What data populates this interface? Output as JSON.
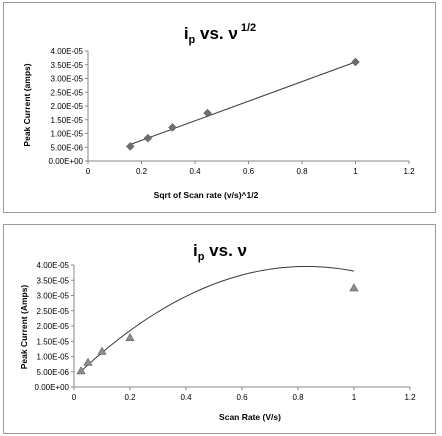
{
  "chart_data": [
    {
      "type": "scatter",
      "title_main": "i",
      "title_sub": "p",
      "title_rest": " vs. ν",
      "title_sup": " 1/2",
      "xlabel": "Sqrt of Scan rate (v/s)^1/2",
      "ylabel": "Peak Current (amps)",
      "xlim": [
        0,
        1.2
      ],
      "ylim": [
        0,
        4e-05
      ],
      "x_ticks": [
        0,
        0.2,
        0.4,
        0.6,
        0.8,
        1,
        1.2
      ],
      "x_tick_labels": [
        "0",
        "0.2",
        "0.4",
        "0.6",
        "0.8",
        "1",
        "1.2"
      ],
      "y_ticks": [
        0,
        5e-06,
        1e-05,
        1.5e-05,
        2e-05,
        2.5e-05,
        3e-05,
        3.5e-05,
        4e-05
      ],
      "y_tick_labels": [
        "0.00E+00",
        "5.00E-06",
        "1.00E-05",
        "1.50E-05",
        "2.00E-05",
        "2.50E-05",
        "3.00E-05",
        "3.50E-05",
        "4.00E-05"
      ],
      "marker": "diamond",
      "points": [
        {
          "x": 0.158,
          "y": 5.3e-06
        },
        {
          "x": 0.224,
          "y": 8.3e-06
        },
        {
          "x": 0.316,
          "y": 1.22e-05
        },
        {
          "x": 0.447,
          "y": 1.74e-05
        },
        {
          "x": 1.0,
          "y": 3.6e-05
        }
      ],
      "trendline": {
        "kind": "linear",
        "x_range": [
          0.158,
          1.0
        ],
        "y_start": 6e-06,
        "y_end": 3.6e-05
      },
      "grid": false,
      "legend": "none"
    },
    {
      "type": "scatter",
      "title_main": "i",
      "title_sub": "p",
      "title_rest": " vs. ν",
      "title_sup": "",
      "xlabel": "Scan Rate (V/s)",
      "ylabel": "Peak Current (Amps)",
      "xlim": [
        0,
        1.2
      ],
      "ylim": [
        0,
        4e-05
      ],
      "x_ticks": [
        0,
        0.2,
        0.4,
        0.6,
        0.8,
        1,
        1.2
      ],
      "x_tick_labels": [
        "0",
        "0.2",
        "0.4",
        "0.6",
        "0.8",
        "1",
        "1.2"
      ],
      "y_ticks": [
        0,
        5e-06,
        1e-05,
        1.5e-05,
        2e-05,
        2.5e-05,
        3e-05,
        3.5e-05,
        4e-05
      ],
      "y_tick_labels": [
        "0.00E+00",
        "5.00E-06",
        "1.00E-05",
        "1.50E-05",
        "2.00E-05",
        "2.50E-05",
        "3.00E-05",
        "3.50E-05",
        "4.00E-05"
      ],
      "marker": "triangle",
      "points": [
        {
          "x": 0.025,
          "y": 5.3e-06
        },
        {
          "x": 0.05,
          "y": 8.1e-06
        },
        {
          "x": 0.1,
          "y": 1.17e-05
        },
        {
          "x": 0.2,
          "y": 1.62e-05
        },
        {
          "x": 1.0,
          "y": 3.25e-05
        }
      ],
      "trendline": {
        "kind": "polynomial",
        "coefficients": [
          3e-06,
          8.8e-05,
          -5.3e-05
        ],
        "x_range": [
          0.025,
          1.0
        ]
      },
      "grid": false,
      "legend": "none"
    }
  ],
  "colors": {
    "marker": "#6e6e6e",
    "marker_stroke": "#555555",
    "line": "#3a3a3a",
    "axis": "#8a8a8a",
    "border": "#9a9a9a"
  }
}
